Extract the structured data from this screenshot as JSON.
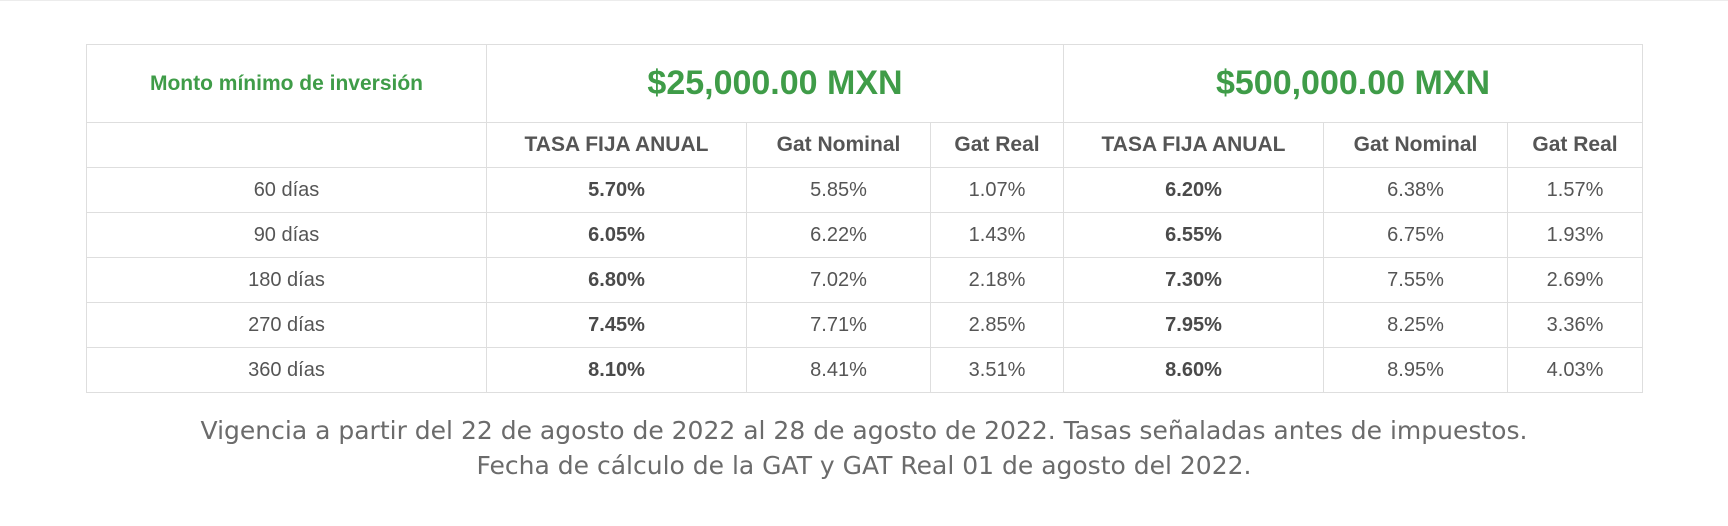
{
  "table": {
    "label": "Monto mínimo de inversión",
    "groups": [
      {
        "amount": "$25,000.00 MXN"
      },
      {
        "amount": "$500,000.00 MXN"
      }
    ],
    "columns": [
      "TASA FIJA ANUAL",
      "Gat Nominal",
      "Gat Real",
      "TASA FIJA ANUAL",
      "Gat Nominal",
      "Gat Real"
    ],
    "rows": [
      {
        "term": "60 días",
        "values": [
          "5.70%",
          "5.85%",
          "1.07%",
          "6.20%",
          "6.38%",
          "1.57%"
        ]
      },
      {
        "term": "90 días",
        "values": [
          "6.05%",
          "6.22%",
          "1.43%",
          "6.55%",
          "6.75%",
          "1.93%"
        ]
      },
      {
        "term": "180 días",
        "values": [
          "6.80%",
          "7.02%",
          "2.18%",
          "7.30%",
          "7.55%",
          "2.69%"
        ]
      },
      {
        "term": "270 días",
        "values": [
          "7.45%",
          "7.71%",
          "2.85%",
          "7.95%",
          "8.25%",
          "3.36%"
        ]
      },
      {
        "term": "360 días",
        "values": [
          "8.10%",
          "8.41%",
          "3.51%",
          "8.60%",
          "8.95%",
          "4.03%"
        ]
      }
    ]
  },
  "footnote": {
    "line1": "Vigencia a partir del 22 de agosto de 2022 al 28 de agosto de 2022. Tasas señaladas antes de impuestos.",
    "line2": "Fecha de cálculo de la GAT y GAT Real 01 de agosto del 2022."
  },
  "colors": {
    "accent_green": "#3f9c48",
    "text_gray": "#555555",
    "border": "#dedede"
  }
}
